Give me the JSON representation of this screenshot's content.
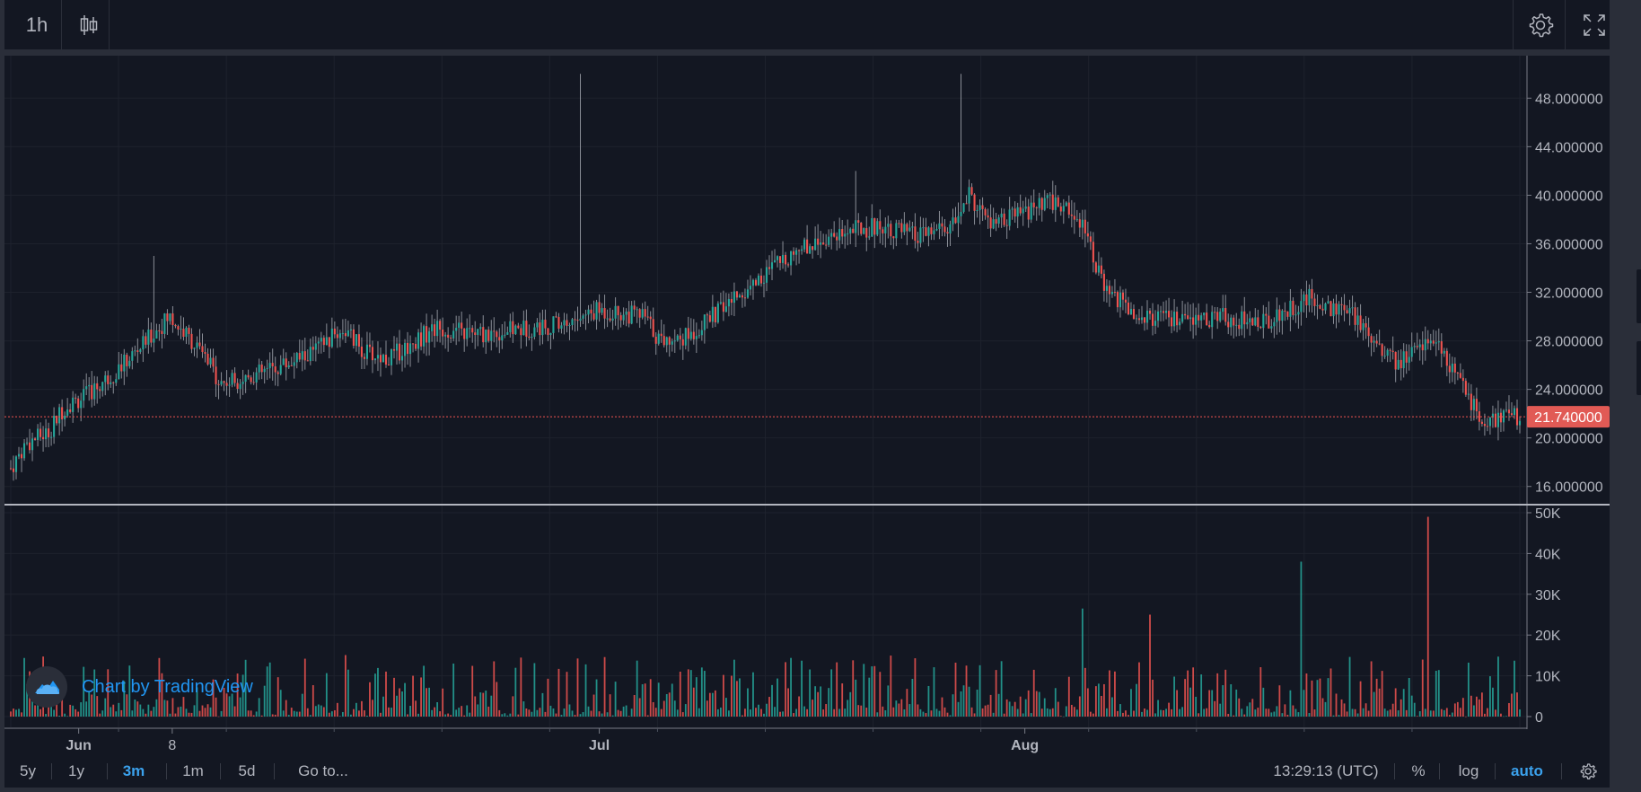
{
  "toolbar": {
    "interval_label": "1h",
    "chart_style_icon": "candles-icon",
    "settings_icon": "gear-icon",
    "fullscreen_icon": "fullscreen-icon"
  },
  "price": {
    "last_price_label": "21.740000",
    "last_price": 21.74
  },
  "bottombar": {
    "ranges": [
      "5y",
      "1y",
      "3m",
      "1m",
      "5d"
    ],
    "active_range": "3m",
    "goto_label": "Go to...",
    "time_label": "13:29:13 (UTC)",
    "percent_label": "%",
    "log_label": "log",
    "auto_label": "auto",
    "settings_icon": "gear-icon"
  },
  "watermark": {
    "text": "Chart by TradingView",
    "logo_icon": "tradingview-cloud-icon"
  },
  "colors": {
    "background": "#131722",
    "up": "#26a69a",
    "down": "#ef5350",
    "grid": "#1e222d",
    "price_tag": "#e15a55",
    "accent": "#3ba1ec"
  },
  "chart_data": {
    "type": "candlestick",
    "x_tick_labels": [
      "Jun",
      "8",
      "Jul",
      "Aug"
    ],
    "price_axis": {
      "tick_labels": [
        "48.000000",
        "44.000000",
        "40.000000",
        "36.000000",
        "32.000000",
        "28.000000",
        "24.000000",
        "20.000000",
        "16.000000"
      ],
      "ticks": [
        48,
        44,
        40,
        36,
        32,
        28,
        24,
        20,
        16
      ],
      "range": [
        14.5,
        51.5
      ]
    },
    "volume_axis": {
      "tick_labels": [
        "50K",
        "40K",
        "30K",
        "20K",
        "10K",
        "0"
      ],
      "ticks": [
        50000,
        40000,
        30000,
        20000,
        10000,
        0
      ],
      "range": [
        0,
        50000
      ]
    },
    "price_path": [
      {
        "t": 0.0,
        "p": 17.5
      },
      {
        "t": 0.01,
        "p": 19.5
      },
      {
        "t": 0.025,
        "p": 20.5
      },
      {
        "t": 0.035,
        "p": 22.5
      },
      {
        "t": 0.05,
        "p": 23.5
      },
      {
        "t": 0.07,
        "p": 25.5
      },
      {
        "t": 0.09,
        "p": 28.0
      },
      {
        "t": 0.105,
        "p": 30.0
      },
      {
        "t": 0.12,
        "p": 28.0
      },
      {
        "t": 0.14,
        "p": 24.5
      },
      {
        "t": 0.17,
        "p": 25.5
      },
      {
        "t": 0.2,
        "p": 27.0
      },
      {
        "t": 0.22,
        "p": 29.0
      },
      {
        "t": 0.235,
        "p": 27.0
      },
      {
        "t": 0.25,
        "p": 26.5
      },
      {
        "t": 0.28,
        "p": 29.0
      },
      {
        "t": 0.31,
        "p": 28.5
      },
      {
        "t": 0.34,
        "p": 29.0
      },
      {
        "t": 0.37,
        "p": 29.5
      },
      {
        "t": 0.39,
        "p": 30.5
      },
      {
        "t": 0.42,
        "p": 30.0
      },
      {
        "t": 0.43,
        "p": 28.0
      },
      {
        "t": 0.45,
        "p": 28.5
      },
      {
        "t": 0.475,
        "p": 31.0
      },
      {
        "t": 0.5,
        "p": 33.5
      },
      {
        "t": 0.52,
        "p": 35.5
      },
      {
        "t": 0.55,
        "p": 37.0
      },
      {
        "t": 0.58,
        "p": 37.5
      },
      {
        "t": 0.6,
        "p": 36.5
      },
      {
        "t": 0.625,
        "p": 37.5
      },
      {
        "t": 0.635,
        "p": 40.0
      },
      {
        "t": 0.65,
        "p": 37.5
      },
      {
        "t": 0.67,
        "p": 38.5
      },
      {
        "t": 0.69,
        "p": 39.5
      },
      {
        "t": 0.71,
        "p": 38.0
      },
      {
        "t": 0.725,
        "p": 32.0
      },
      {
        "t": 0.75,
        "p": 30.0
      },
      {
        "t": 0.78,
        "p": 29.5
      },
      {
        "t": 0.8,
        "p": 30.0
      },
      {
        "t": 0.83,
        "p": 29.5
      },
      {
        "t": 0.86,
        "p": 31.5
      },
      {
        "t": 0.89,
        "p": 30.0
      },
      {
        "t": 0.92,
        "p": 26.0
      },
      {
        "t": 0.94,
        "p": 28.5
      },
      {
        "t": 0.96,
        "p": 24.5
      },
      {
        "t": 0.975,
        "p": 21.5
      },
      {
        "t": 1.0,
        "p": 21.74
      }
    ],
    "spikes": [
      {
        "t": 0.377,
        "high": 50.0
      },
      {
        "t": 0.63,
        "high": 50.0
      },
      {
        "t": 0.095,
        "high": 35.0
      },
      {
        "t": 0.56,
        "high": 42.0
      }
    ],
    "volume_spikes": [
      {
        "t": 0.855,
        "v": 38000
      },
      {
        "t": 0.94,
        "v": 49000
      },
      {
        "t": 0.71,
        "v": 26500
      },
      {
        "t": 0.755,
        "v": 25000
      }
    ]
  }
}
